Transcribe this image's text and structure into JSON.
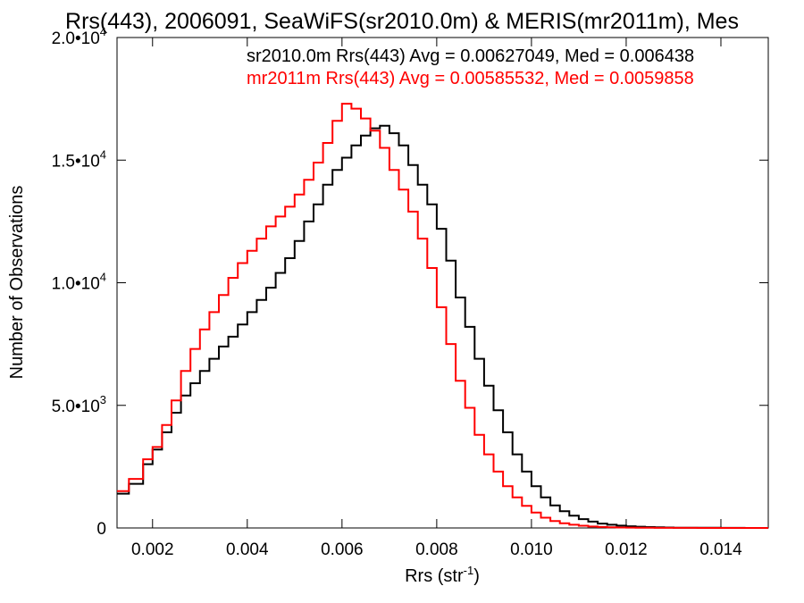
{
  "chart_data": {
    "type": "line",
    "title": "Rrs(443), 2006091, SeaWiFS(sr2010.0m) & MERIS(mr2011m), Mes",
    "xlabel": "Rrs (str",
    "xlabel_sup": "-1",
    "xlabel_close": ")",
    "ylabel": "Number of Observations",
    "xlim": [
      0.00125,
      0.015
    ],
    "ylim": [
      0,
      20000
    ],
    "x_ticks": [
      {
        "value": 0.002,
        "label": "0.002"
      },
      {
        "value": 0.004,
        "label": "0.004"
      },
      {
        "value": 0.006,
        "label": "0.006"
      },
      {
        "value": 0.008,
        "label": "0.008"
      },
      {
        "value": 0.01,
        "label": "0.010"
      },
      {
        "value": 0.012,
        "label": "0.012"
      },
      {
        "value": 0.014,
        "label": "0.014"
      }
    ],
    "y_ticks": [
      {
        "value": 0,
        "label": "0",
        "exp": ""
      },
      {
        "value": 5000,
        "label": "5.0•10",
        "exp": "3"
      },
      {
        "value": 10000,
        "label": "1.0•10",
        "exp": "4"
      },
      {
        "value": 15000,
        "label": "1.5•10",
        "exp": "4"
      },
      {
        "value": 20000,
        "label": "2.0•10",
        "exp": "4"
      }
    ],
    "grid": false,
    "legend_position": "top-right",
    "series": [
      {
        "name": "sr2010.0m Rrs(443) Avg = 0.00627049, Med = 0.006438",
        "color": "#000000",
        "x": [
          0.00125,
          0.0015,
          0.0018,
          0.002,
          0.0022,
          0.0024,
          0.0026,
          0.0028,
          0.003,
          0.0032,
          0.0034,
          0.0036,
          0.0038,
          0.004,
          0.0042,
          0.0044,
          0.0046,
          0.0048,
          0.005,
          0.0052,
          0.0054,
          0.0056,
          0.0058,
          0.006,
          0.0062,
          0.0064,
          0.0066,
          0.0068,
          0.007,
          0.0072,
          0.0074,
          0.0076,
          0.0078,
          0.008,
          0.0082,
          0.0084,
          0.0086,
          0.0088,
          0.009,
          0.0092,
          0.0094,
          0.0096,
          0.0098,
          0.01,
          0.0102,
          0.0104,
          0.0106,
          0.0108,
          0.011,
          0.0112,
          0.0114,
          0.0116,
          0.0118,
          0.012,
          0.0122,
          0.0124,
          0.0126,
          0.0128,
          0.013,
          0.0135,
          0.014,
          0.0145,
          0.015
        ],
        "y": [
          1400,
          1800,
          2600,
          3200,
          3900,
          4700,
          5400,
          5900,
          6400,
          6900,
          7400,
          7800,
          8300,
          8800,
          9300,
          9800,
          10400,
          11000,
          11700,
          12500,
          13200,
          14000,
          14600,
          15100,
          15600,
          16000,
          16300,
          16400,
          16100,
          15600,
          14800,
          14000,
          13200,
          12200,
          10900,
          9400,
          8200,
          6900,
          5800,
          4800,
          3900,
          3000,
          2300,
          1700,
          1250,
          920,
          680,
          500,
          360,
          260,
          180,
          130,
          95,
          70,
          50,
          35,
          25,
          18,
          12,
          6,
          3,
          1,
          0
        ]
      },
      {
        "name": "mr2011m Rrs(443) Avg = 0.00585532, Med = 0.0059858",
        "color": "#ff0000",
        "x": [
          0.00125,
          0.0015,
          0.0018,
          0.002,
          0.0022,
          0.0024,
          0.0026,
          0.0028,
          0.003,
          0.0032,
          0.0034,
          0.0036,
          0.0038,
          0.004,
          0.0042,
          0.0044,
          0.0046,
          0.0048,
          0.005,
          0.0052,
          0.0054,
          0.0056,
          0.0058,
          0.006,
          0.0062,
          0.0064,
          0.0066,
          0.0068,
          0.007,
          0.0072,
          0.0074,
          0.0076,
          0.0078,
          0.008,
          0.0082,
          0.0084,
          0.0086,
          0.0088,
          0.009,
          0.0092,
          0.0094,
          0.0096,
          0.0098,
          0.01,
          0.0102,
          0.0104,
          0.0106,
          0.0108,
          0.011,
          0.0112,
          0.0114,
          0.0116,
          0.0118,
          0.012,
          0.0122,
          0.0124,
          0.0126,
          0.0128,
          0.013,
          0.0135,
          0.014,
          0.0145,
          0.015
        ],
        "y": [
          1500,
          2000,
          2800,
          3300,
          4200,
          5200,
          6400,
          7300,
          8100,
          8800,
          9500,
          10200,
          10800,
          11300,
          11800,
          12300,
          12700,
          13100,
          13600,
          14200,
          14900,
          15700,
          16600,
          17300,
          17100,
          16700,
          16200,
          15500,
          14600,
          13800,
          12900,
          11800,
          10600,
          9000,
          7500,
          6000,
          4900,
          3800,
          3000,
          2300,
          1700,
          1250,
          900,
          630,
          420,
          280,
          190,
          130,
          90,
          60,
          40,
          28,
          20,
          14,
          10,
          7,
          5,
          3,
          2,
          1,
          0,
          0,
          0
        ]
      }
    ]
  }
}
